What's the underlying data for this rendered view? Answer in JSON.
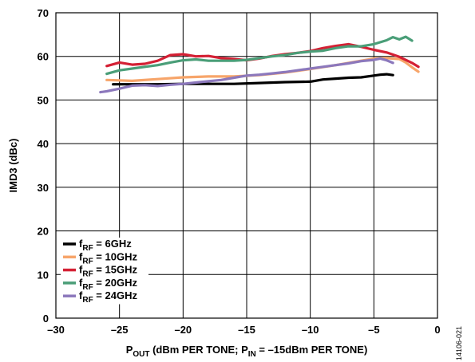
{
  "chart_data": {
    "type": "line",
    "xlabel_main": "P",
    "xlabel_sub1": "OUT",
    "xlabel_mid": " (dBm PER TONE; P",
    "xlabel_sub2": "IN",
    "xlabel_end": " = –15dBm PER TONE)",
    "ylabel": "IMD3 (dBc)",
    "xlim": [
      -30,
      0
    ],
    "ylim": [
      0,
      70
    ],
    "xticks": [
      -30,
      -25,
      -20,
      -15,
      -10,
      -5,
      0
    ],
    "xtick_labels": [
      "–30",
      "–25",
      "–20",
      "–15",
      "–10",
      "–5",
      "0"
    ],
    "yticks": [
      0,
      10,
      20,
      30,
      40,
      50,
      60,
      70
    ],
    "ytick_labels": [
      "0",
      "10",
      "20",
      "30",
      "40",
      "50",
      "60",
      "70"
    ],
    "grid": true,
    "legend_position": "bottom-left",
    "figure_id": "14106-021",
    "series": [
      {
        "legend_main": "f",
        "legend_sub": "RF",
        "legend_rest": " = 6GHz",
        "color": "#000000",
        "x": [
          -25.5,
          -24,
          -22,
          -20,
          -18,
          -16,
          -14,
          -12,
          -10,
          -9,
          -8,
          -7,
          -6,
          -5,
          -4.5,
          -4,
          -3.5
        ],
        "y": [
          53.6,
          53.6,
          53.6,
          53.7,
          53.7,
          53.7,
          53.9,
          54.1,
          54.2,
          54.7,
          54.9,
          55.1,
          55.2,
          55.6,
          55.8,
          55.9,
          55.7
        ]
      },
      {
        "legend_main": "f",
        "legend_sub": "RF",
        "legend_rest": " = 10GHz",
        "color": "#F7A56A",
        "x": [
          -26,
          -25,
          -24,
          -22,
          -20,
          -18,
          -16,
          -14,
          -12,
          -10,
          -8,
          -6,
          -5,
          -4,
          -3,
          -2.5,
          -2,
          -1.5
        ],
        "y": [
          54.6,
          54.5,
          54.4,
          54.8,
          55.2,
          55.4,
          55.4,
          55.7,
          56.3,
          57.1,
          58,
          59,
          59.5,
          59.6,
          59.4,
          58.6,
          57.5,
          56.5
        ]
      },
      {
        "legend_main": "f",
        "legend_sub": "RF",
        "legend_rest": " = 15GHz",
        "color": "#D42034",
        "x": [
          -26,
          -25,
          -24,
          -23,
          -22,
          -21,
          -20,
          -19,
          -18,
          -17,
          -16,
          -15,
          -14,
          -13,
          -12,
          -11,
          -10,
          -9,
          -8,
          -7,
          -6,
          -5,
          -4,
          -3,
          -2,
          -1.5
        ],
        "y": [
          57.8,
          58.6,
          58.1,
          58.3,
          59,
          60.3,
          60.5,
          60,
          60.1,
          59.6,
          59.4,
          59.1,
          59.5,
          60.1,
          60.5,
          60.8,
          61.2,
          61.9,
          62.4,
          62.8,
          62.2,
          61.5,
          60.9,
          59.9,
          58.5,
          57.6
        ]
      },
      {
        "legend_main": "f",
        "legend_sub": "RF",
        "legend_rest": " = 20GHz",
        "color": "#4A9E78",
        "x": [
          -26,
          -25,
          -24,
          -23,
          -22,
          -21,
          -20,
          -19,
          -18,
          -17,
          -16,
          -15,
          -14,
          -13,
          -12,
          -11,
          -10,
          -9,
          -8,
          -7,
          -6,
          -5,
          -4,
          -3.5,
          -3,
          -2.5,
          -2
        ],
        "y": [
          56,
          56.8,
          57.2,
          57.6,
          58,
          58.6,
          59.1,
          59.3,
          59,
          59,
          59,
          59.2,
          59.6,
          60,
          60.3,
          60.8,
          61.1,
          61.3,
          61.9,
          62.3,
          62.3,
          62.8,
          63.7,
          64.4,
          63.9,
          64.5,
          63.6
        ]
      },
      {
        "legend_main": "f",
        "legend_sub": "RF",
        "legend_rest": " = 24GHz",
        "color": "#8C78BC",
        "x": [
          -26.5,
          -26,
          -25,
          -24,
          -23,
          -22,
          -21,
          -20,
          -19,
          -18,
          -17,
          -16,
          -15,
          -14,
          -13,
          -12,
          -11,
          -10,
          -9,
          -8,
          -7,
          -6,
          -5,
          -4.5,
          -4,
          -3.5
        ],
        "y": [
          51.8,
          52,
          52.6,
          53.3,
          53.4,
          53.2,
          53.5,
          53.7,
          54,
          54.3,
          54.6,
          55.1,
          55.6,
          55.8,
          56.1,
          56.4,
          56.8,
          57.2,
          57.6,
          58,
          58.4,
          58.9,
          59.2,
          59.5,
          59.1,
          58.5
        ]
      }
    ]
  }
}
